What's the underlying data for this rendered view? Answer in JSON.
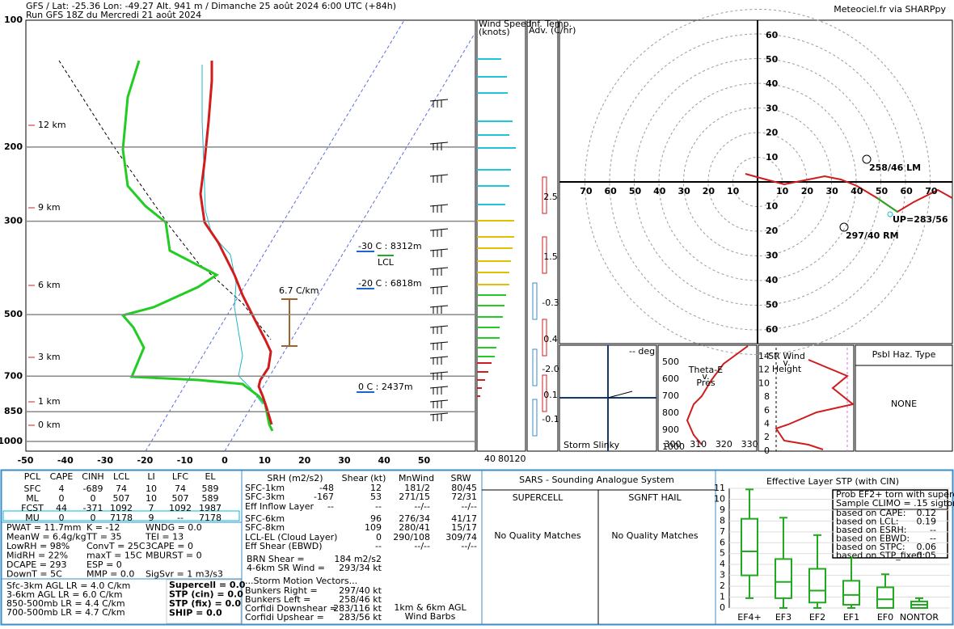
{
  "header": {
    "title": "GFS / Lat: -25.36 Lon: -49.27 Alt. 941 m / Dimanche 25 août 2024  6:00 UTC (+84h)",
    "run": "Run GFS 18Z du Mercredi 21 août 2024",
    "source": "Meteociel.fr via SHARPpy"
  },
  "skewt": {
    "pressure_levels": [
      100,
      200,
      300,
      500,
      700,
      850,
      1000
    ],
    "temperature_ticks": [
      -50,
      -40,
      -30,
      -20,
      -10,
      0,
      10,
      20,
      30,
      40,
      50
    ],
    "height_labels": [
      "12 km",
      "9 km",
      "6 km",
      "3 km",
      "1 km",
      "0 km"
    ],
    "annotations": {
      "m30": "-30 C : 8312m",
      "lcl": "LCL",
      "m20": "-20 C : 6818m",
      "lapse": "6.7 C/km",
      "zero": "0 C : 2437m"
    }
  },
  "wind_panel": {
    "title": "Wind Speed",
    "unit": "(knots)",
    "ticks": [
      40,
      80,
      120
    ]
  },
  "adv_panel": {
    "title": "Inf. Temp.",
    "unit": "Adv. (C/hr)",
    "labels": [
      "2.5",
      "1.5",
      "-0.3",
      "0.4",
      "-2.0",
      "0.1",
      "-0.1"
    ]
  },
  "hodograph": {
    "ticks_up": [
      60,
      50,
      40,
      30,
      20,
      10
    ],
    "ticks_down": [
      10,
      20,
      30,
      40,
      50,
      60
    ],
    "ticks_left": [
      70,
      60,
      50,
      40,
      30,
      20,
      10
    ],
    "ticks_right": [
      10,
      20,
      30,
      40,
      50,
      60,
      70
    ],
    "lm": "258/46 LM",
    "rm": "297/40 RM",
    "up": "UP=283/56"
  },
  "slinky": {
    "deg": "-- deg",
    "title": "Storm Slinky"
  },
  "thetae": {
    "title": [
      "Theta-E",
      "v.",
      "Pres"
    ],
    "yticks": [
      500,
      600,
      700,
      800,
      900,
      1000
    ],
    "xticks": [
      300,
      310,
      320,
      330
    ]
  },
  "srwind": {
    "title": [
      "SR Wind",
      "v.",
      "Height"
    ],
    "yticks": [
      14,
      12,
      10,
      8,
      6,
      4,
      2,
      0
    ]
  },
  "hazard": {
    "title": "Psbl Haz. Type",
    "value": "NONE"
  },
  "parcels": {
    "header": [
      "PCL",
      "CAPE",
      "CINH",
      "LCL",
      "LI",
      "LFC",
      "EL"
    ],
    "rows": [
      [
        "SFC",
        "4",
        "-689",
        "74",
        "10",
        "74",
        "589"
      ],
      [
        "ML",
        "0",
        "0",
        "507",
        "10",
        "507",
        "589"
      ],
      [
        "FCST",
        "44",
        "-371",
        "1092",
        "7",
        "1092",
        "1987"
      ],
      [
        "MU",
        "0",
        "0",
        "7178",
        "9",
        "--",
        "7178"
      ]
    ]
  },
  "indices": [
    [
      "PWAT = 11.7mm",
      "K = -12",
      "WNDG = 0.0"
    ],
    [
      "MeanW = 6.4g/kg",
      "TT = 35",
      "TEI = 13"
    ],
    [
      "LowRH = 98%",
      "ConvT = 25C",
      "3CAPE = 0"
    ],
    [
      "MidRH = 22%",
      "maxT = 15C",
      "MBURST = 0"
    ],
    [
      "DCAPE = 293",
      "ESP = 0"
    ],
    [
      "DownT = 5C",
      "MMP = 0.0",
      "SigSvr = 1 m3/s3"
    ]
  ],
  "lapse_rates": [
    "Sfc-3km AGL LR = 4.0 C/km",
    "3-6km AGL LR = 6.0 C/km",
    "850-500mb LR = 4.4 C/km",
    "700-500mb LR = 4.7 C/km"
  ],
  "severe": [
    "Supercell = 0.0",
    "STP (cin) = 0.0",
    "STP (fix) = 0.0",
    "SHIP = 0.0"
  ],
  "kinematics": {
    "header": [
      "SRH (m2/s2)",
      "Shear (kt)",
      "MnWind",
      "SRW"
    ],
    "rows": [
      {
        "label": "SFC-1km",
        "srh": "-48",
        "shear": "12",
        "mnwind": "181/2",
        "srw": "80/45"
      },
      {
        "label": "SFC-3km",
        "srh": "-167",
        "shear": "53",
        "mnwind": "271/15",
        "srw": "72/31"
      },
      {
        "label": "Eff Inflow Layer",
        "srh": "--",
        "shear": "--",
        "mnwind": "--/--",
        "srw": "--/--"
      },
      {
        "label": "SFC-6km",
        "shear": "96",
        "mnwind": "276/34",
        "srw": "41/17"
      },
      {
        "label": "SFC-8km",
        "shear": "109",
        "mnwind": "280/41",
        "srw": "15/17"
      },
      {
        "label": "LCL-EL (Cloud Layer)",
        "shear": "0",
        "mnwind": "290/108",
        "srw": "309/74"
      },
      {
        "label": "Eff Shear (EBWD)",
        "shear": "--",
        "mnwind": "--/--",
        "srw": "--/--"
      }
    ],
    "brn": [
      "BRN Shear =",
      "184 m2/s2"
    ],
    "sr46": [
      "4-6km SR Wind =",
      "293/34 kt"
    ],
    "motion_title": "...Storm Motion Vectors...",
    "motion": [
      [
        "Bunkers Right =",
        "297/40 kt"
      ],
      [
        "Bunkers Left =",
        "258/46 kt"
      ],
      [
        "Corfidi Downshear =",
        "283/116 kt"
      ],
      [
        "Corfidi Upshear =",
        "283/56 kt"
      ]
    ],
    "barb_note": [
      "1km & 6km AGL",
      "Wind Barbs"
    ]
  },
  "sars": {
    "title": "SARS - Sounding Analogue System",
    "supercell": "SUPERCELL",
    "hail": "SGNFT HAIL",
    "supercell_result": "No Quality Matches",
    "hail_result": "No Quality Matches"
  },
  "stp": {
    "title": "Effective Layer STP (with CIN)",
    "ylim": [
      0,
      11
    ],
    "yticks": [
      0,
      1,
      2,
      3,
      4,
      5,
      6,
      7,
      8,
      9,
      10,
      11
    ],
    "categories": [
      "EF4+",
      "EF3",
      "EF2",
      "EF1",
      "EF0",
      "NONTOR"
    ],
    "boxes": [
      [
        0.9,
        3,
        5.2,
        8.2,
        10.9
      ],
      [
        0,
        0.9,
        2.4,
        4.5,
        8.3
      ],
      [
        0,
        0.5,
        1.6,
        3.6,
        6.7
      ],
      [
        0,
        0.3,
        1.2,
        2.5,
        4.6
      ],
      [
        0,
        0,
        0.8,
        1.9,
        3.1
      ],
      [
        0,
        0,
        0.3,
        0.6,
        0.9
      ]
    ],
    "legend": [
      "Prob EF2+ torn with supercell",
      "Sample CLIMO = .15 sigtor"
    ],
    "probs": [
      [
        "based on CAPE:",
        "0.12"
      ],
      [
        "based on LCL:",
        "0.19"
      ],
      [
        "based on ESRH:",
        "--"
      ],
      [
        "based on EBWD:",
        "--"
      ],
      [
        "based on STPC:",
        "0.06"
      ],
      [
        "based on STP_fixed:",
        "0.05"
      ]
    ]
  }
}
